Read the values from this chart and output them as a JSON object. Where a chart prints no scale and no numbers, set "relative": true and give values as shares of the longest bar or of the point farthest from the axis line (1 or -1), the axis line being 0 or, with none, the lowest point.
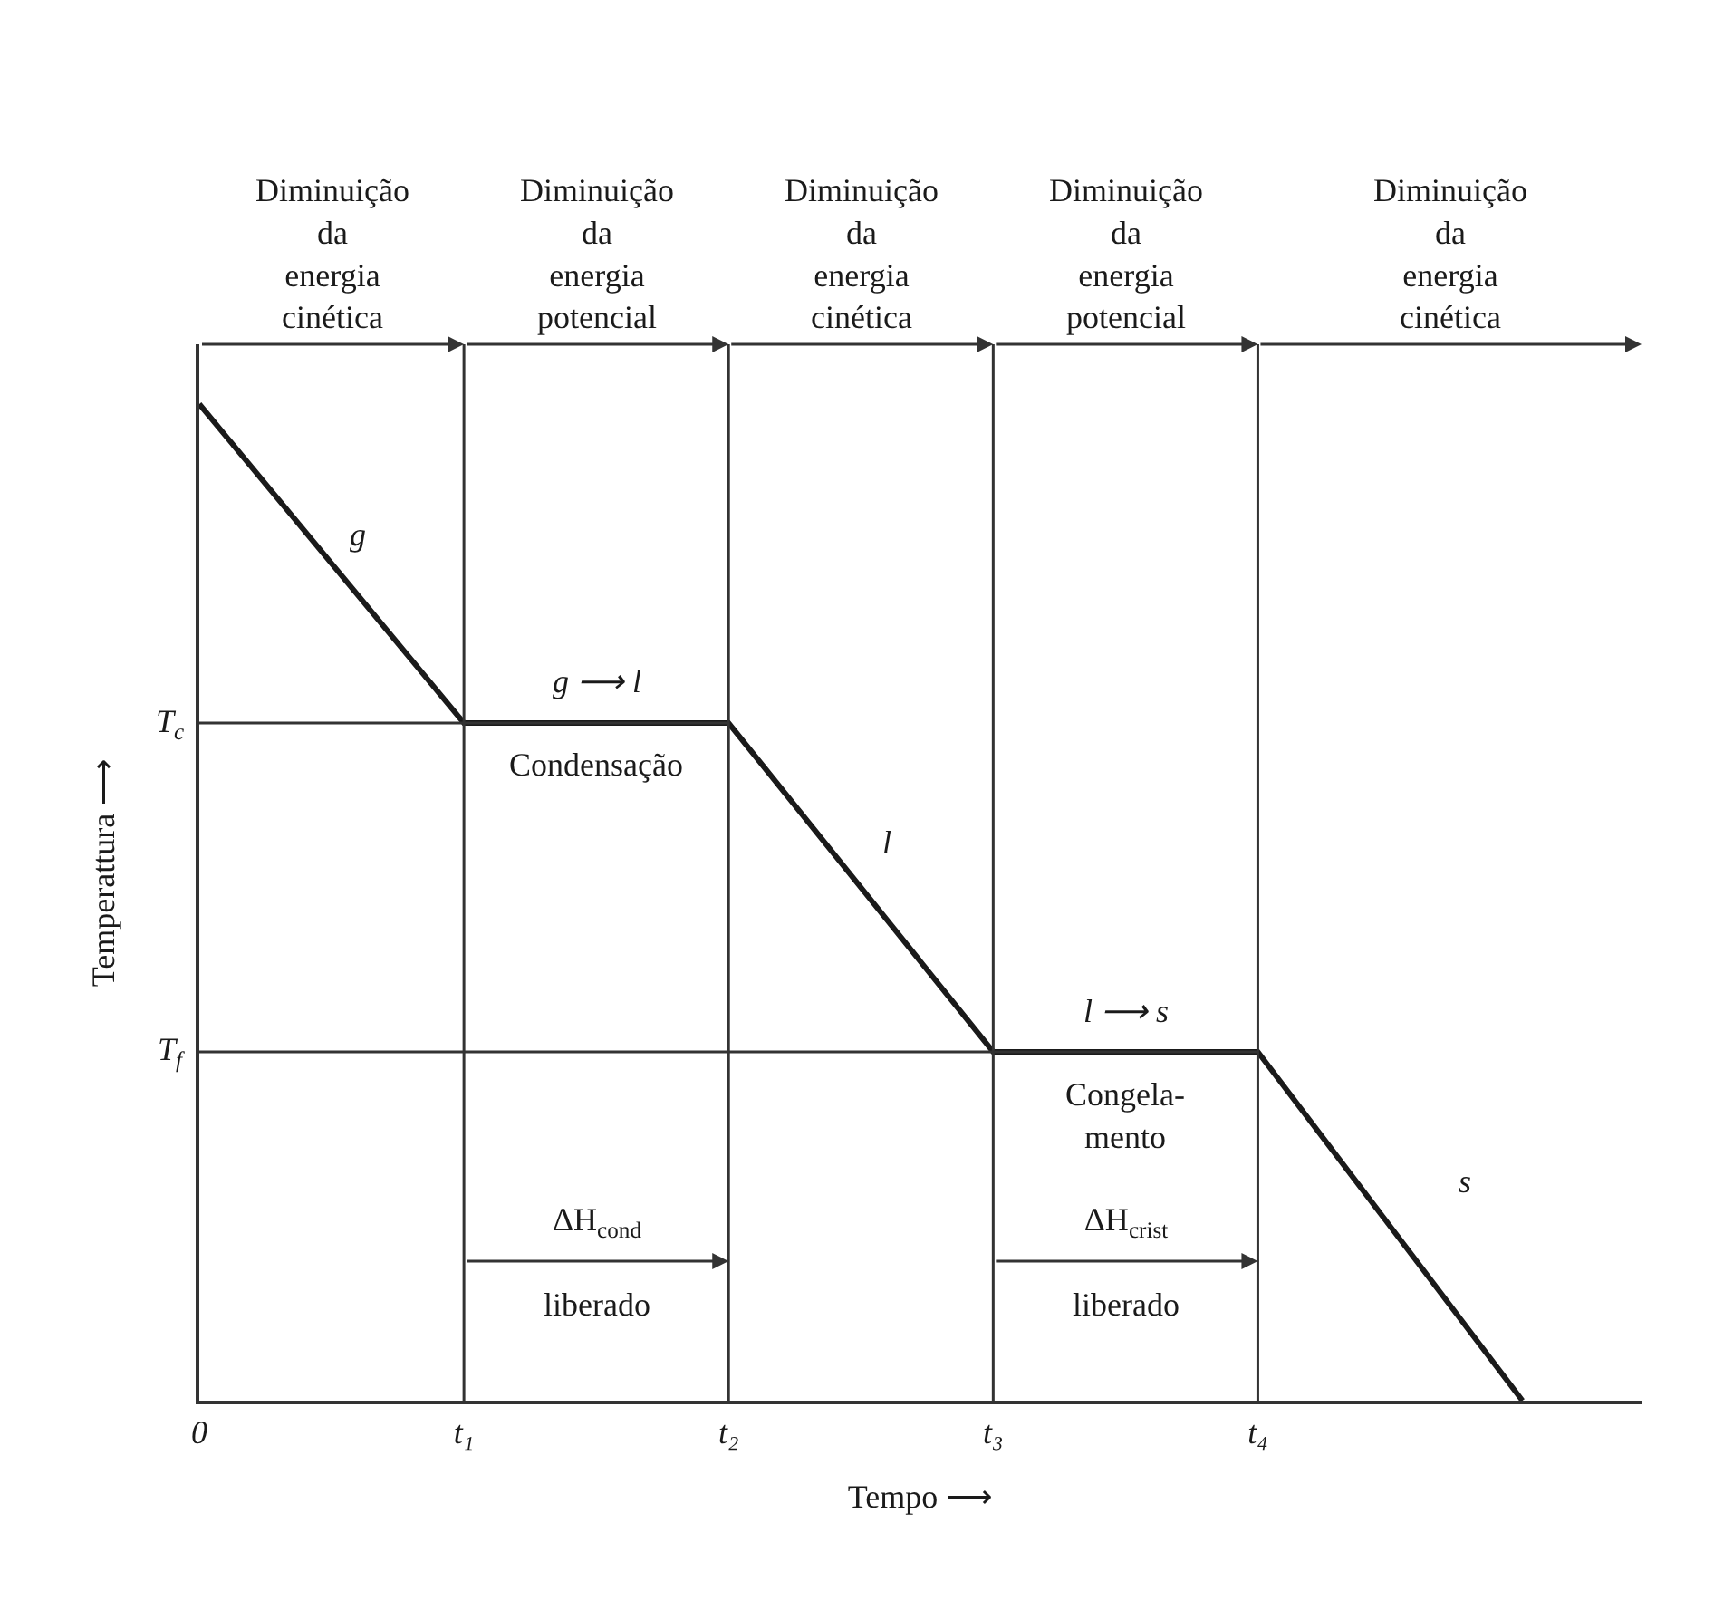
{
  "chart_data": {
    "type": "line",
    "relative": true,
    "color": "#1a1a1a",
    "xlabel": "Tempo ⟶",
    "ylabel": "Temperattura ⟶",
    "categories": [
      "0",
      "t₁",
      "t₂",
      "t₃",
      "t₄",
      null
    ],
    "values": [
      1,
      0.68,
      0.68,
      0.35,
      0.35,
      0
    ],
    "marker": "none",
    "line_style": "solid",
    "grid": false,
    "ref_lines": [
      {
        "axis": "y",
        "value": 0.68,
        "label": "T$_{c}$"
      },
      {
        "axis": "y",
        "value": 0.35,
        "label": "T$_{f}$"
      },
      {
        "axis": "x",
        "value": "t₁",
        "label": null
      },
      {
        "axis": "x",
        "value": "t₂",
        "label": null
      },
      {
        "axis": "x",
        "value": "t₃",
        "label": null
      },
      {
        "axis": "x",
        "value": "t₄",
        "label": null
      }
    ],
    "annotations": [
      "Diminuição\nda\nenergia\ncinética",
      "Diminuição\nda\nenergia\npotencial",
      "Diminuição\nda\nenergia\ncinética",
      "Diminuição\nda\nenergia\npotencial",
      "Diminuição\nda\nenergia\ncinética",
      "g",
      "g ⟶ l",
      "Condensação",
      "l",
      "l ⟶ s",
      "Congela-\nmento",
      "s",
      "ΔH$_{cond}$\nliberado",
      "ΔH$_{crist}$\nliberado"
    ]
  }
}
